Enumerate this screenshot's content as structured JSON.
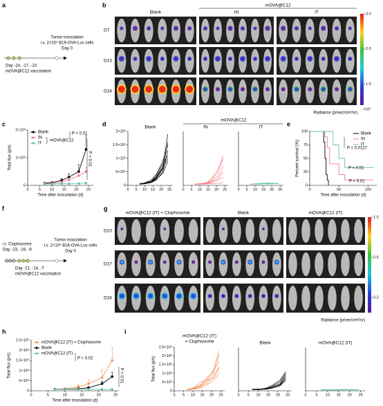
{
  "panel_labels": [
    "a",
    "b",
    "c",
    "d",
    "e",
    "f",
    "g",
    "h",
    "i"
  ],
  "panel_a": {
    "event": "Tumor inoculation",
    "detail": "i.v. 2×10⁵ B16-OVA-Luc cells",
    "day": "Day 0",
    "vaccine_days": "Day -24, -17, -10",
    "vaccine": "mOVA@C12 vaccination"
  },
  "panel_b": {
    "groups": [
      "Blank",
      "IN",
      "IT"
    ],
    "group_header": "mOVA@C12",
    "rows": [
      "D7",
      "D13",
      "D24"
    ],
    "colorbar": {
      "lim": [
        0.4,
        3
      ],
      "ticks": [
        {
          "value": 3,
          "label": "3.0"
        },
        {
          "value": 2,
          "label": "2.0"
        },
        {
          "value": 1,
          "label": "1.0"
        }
      ],
      "unit": "×10⁶",
      "label": "Radiance (p/sec/cm²/sr)"
    }
  },
  "panel_d": {
    "group_header": "mOVA@C12"
  },
  "panel_f": {
    "pretreat": "i.t. Clophosome",
    "pretreat_days": "Day -23, -16, -9",
    "event": "Tumor inoculation",
    "detail": "i.v. 2×10⁵ B16-OVA-Luc cells",
    "day": "Day 0",
    "vaccine_days": "Day -21, -14, -7",
    "vaccine": "mOVA@C12 vaccination"
  },
  "panel_g": {
    "groups": [
      "mOVA@C12 (IT) + Clophosome",
      "Blank",
      "mOVA@C12 (IT)"
    ],
    "rows": [
      "D10",
      "D17",
      "D24"
    ],
    "colorbar": {
      "lim": [
        0.05,
        1
      ],
      "ticks": [
        {
          "value": 1,
          "label": "1.0"
        },
        0.6,
        0.2
      ],
      "label": "Radiance (p/sec/cm²/sr)"
    }
  },
  "chart_data": [
    {
      "type": "line",
      "x_label": "Time after inoculation (d)",
      "y_label": "Total flux (p/s)",
      "x": [
        7,
        10,
        14,
        17,
        21,
        24
      ],
      "xlim": [
        0,
        27
      ],
      "xticks": [
        0,
        5,
        10,
        15,
        20,
        25
      ],
      "ylim": [
        0,
        2000000
      ],
      "yticks": [
        0,
        {
          "value": 1000000,
          "label": "1×10⁶"
        },
        {
          "value": 2000000,
          "label": "2×10⁶"
        }
      ],
      "legend": "upper left",
      "series": [
        {
          "name": "Blank",
          "color": "#000000",
          "values": [
            80000,
            100000,
            180000,
            300000,
            500000,
            1300000
          ],
          "errors": [
            20000,
            30000,
            60000,
            120000,
            250000,
            500000
          ]
        },
        {
          "name": "IN",
          "color": "#ef7f86",
          "values": [
            60000,
            70000,
            120000,
            200000,
            350000,
            500000
          ],
          "errors": [
            10000,
            20000,
            30000,
            60000,
            100000,
            150000
          ]
        },
        {
          "name": "IT",
          "color": "#66c2b0",
          "values": [
            50000,
            50000,
            60000,
            60000,
            70000,
            80000
          ],
          "errors": [
            10000,
            10000,
            10000,
            10000,
            15000,
            20000
          ]
        }
      ],
      "annotations": [
        "mOVA@C12",
        "P < 0.01",
        "P < 0.01"
      ]
    },
    {
      "type": "line",
      "title": "Blank",
      "x": [
        7,
        10,
        14,
        17,
        21,
        24
      ],
      "xlim": [
        0,
        27
      ],
      "xticks": [
        0,
        5,
        10,
        15,
        20,
        25
      ],
      "ylim": [
        0,
        2000000
      ],
      "yticks": [
        0,
        {
          "value": 500000,
          "label": "5×10⁵"
        },
        {
          "value": 1000000,
          "label": "1×10⁶"
        },
        {
          "value": 1500000,
          "label": "1.5×10⁶"
        },
        {
          "value": 2000000,
          "label": "2×10⁶"
        }
      ],
      "series": [
        {
          "color": "#000000",
          "values": [
            60000,
            80000,
            150000,
            300000,
            700000,
            1900000
          ]
        },
        {
          "color": "#000000",
          "values": [
            50000,
            70000,
            120000,
            250000,
            600000,
            1600000
          ]
        },
        {
          "color": "#000000",
          "values": [
            60000,
            90000,
            200000,
            400000,
            900000,
            1500000
          ]
        },
        {
          "color": "#000000",
          "values": [
            40000,
            60000,
            100000,
            200000,
            500000,
            1300000
          ]
        },
        {
          "color": "#000000",
          "values": [
            50000,
            80000,
            150000,
            350000,
            800000,
            1100000
          ]
        },
        {
          "color": "#000000",
          "values": [
            60000,
            70000,
            130000,
            280000,
            650000,
            1000000
          ]
        },
        {
          "color": "#000000",
          "values": [
            50000,
            60000,
            110000,
            220000,
            450000,
            900000
          ]
        }
      ]
    },
    {
      "type": "line",
      "title": "IN",
      "x": [
        7,
        10,
        14,
        17,
        21,
        24
      ],
      "xlim": [
        0,
        27
      ],
      "xticks": [
        0,
        5,
        10,
        15,
        20,
        25
      ],
      "ylim": [
        0,
        2000000
      ],
      "series": [
        {
          "color": "#ef7f86",
          "values": [
            50000,
            60000,
            100000,
            250000,
            600000,
            1100000
          ]
        },
        {
          "color": "#ef7f86",
          "values": [
            40000,
            50000,
            80000,
            200000,
            500000,
            1000000
          ]
        },
        {
          "color": "#ef7f86",
          "values": [
            50000,
            60000,
            90000,
            150000,
            350000,
            700000
          ]
        },
        {
          "color": "#ef7f86",
          "values": [
            40000,
            50000,
            70000,
            120000,
            250000,
            500000
          ]
        },
        {
          "color": "#ef7f86",
          "values": [
            50000,
            50000,
            60000,
            100000,
            200000,
            300000
          ]
        },
        {
          "color": "#ef7f86",
          "values": [
            40000,
            40000,
            50000,
            60000,
            80000,
            100000
          ]
        }
      ]
    },
    {
      "type": "line",
      "title": "IT",
      "x": [
        7,
        10,
        14,
        17,
        21,
        24
      ],
      "xlim": [
        0,
        27
      ],
      "xticks": [
        0,
        5,
        10,
        15,
        20,
        25
      ],
      "ylim": [
        0,
        2000000
      ],
      "series": [
        {
          "color": "#66c2b0",
          "values": [
            50000,
            60000,
            80000,
            70000,
            60000,
            70000
          ]
        },
        {
          "color": "#66c2b0",
          "values": [
            40000,
            50000,
            60000,
            90000,
            80000,
            60000
          ]
        },
        {
          "color": "#66c2b0",
          "values": [
            50000,
            40000,
            50000,
            60000,
            70000,
            50000
          ]
        },
        {
          "color": "#66c2b0",
          "values": [
            40000,
            50000,
            70000,
            50000,
            60000,
            80000
          ]
        }
      ]
    },
    {
      "type": "step",
      "x_label": "Time after inoculation (d)",
      "y_label": "Percent survival (%)",
      "xlim": [
        0,
        115
      ],
      "xticks": [
        0,
        50,
        100
      ],
      "ylim": [
        0,
        100
      ],
      "yticks": [
        0,
        25,
        50,
        75,
        100
      ],
      "legend": "upper right",
      "series": [
        {
          "name": "Blank",
          "color": "#000000",
          "x": [
            0,
            24,
            26,
            28,
            30,
            32
          ],
          "values": [
            100,
            80,
            50,
            20,
            10,
            0
          ]
        },
        {
          "name": "IN",
          "color": "#ef7f86",
          "x": [
            0,
            26,
            30,
            34,
            50,
            60,
            110
          ],
          "values": [
            100,
            90,
            70,
            40,
            20,
            10,
            10
          ]
        },
        {
          "name": "IT",
          "color": "#66c2b0",
          "x": [
            0,
            40,
            50,
            60,
            110
          ],
          "values": [
            100,
            75,
            50,
            33,
            33
          ]
        }
      ],
      "annotations": [
        "P = 0.0127",
        "P < 0.01",
        "P < 0.01"
      ]
    },
    {
      "type": "line",
      "x_label": "Time after inoculation (d)",
      "y_label": "Total flux (p/s)",
      "x": [
        7,
        10,
        14,
        17,
        21,
        24
      ],
      "xlim": [
        0,
        26
      ],
      "xticks": [
        0,
        5,
        10,
        15,
        20,
        25
      ],
      "ylim": [
        0,
        2500000
      ],
      "yticks": [
        0,
        {
          "value": 500000,
          "label": "5×10⁵"
        },
        {
          "value": 1000000,
          "label": "1×10⁶"
        },
        {
          "value": 1500000,
          "label": "1.5×10⁶"
        },
        {
          "value": 2000000,
          "label": "2×10⁶"
        },
        {
          "value": 2500000,
          "label": "2.5×10⁶"
        }
      ],
      "legend": "upper left",
      "series": [
        {
          "name": "mOVA@C12 (IT) + Clophosome",
          "color": "#f0955a",
          "values": [
            80000,
            100000,
            200000,
            350000,
            650000,
            1500000
          ],
          "errors": [
            20000,
            40000,
            100000,
            200000,
            400000,
            650000
          ]
        },
        {
          "name": "Blank",
          "color": "#000000",
          "values": [
            80000,
            80000,
            100000,
            150000,
            350000,
            700000
          ],
          "errors": [
            20000,
            20000,
            40000,
            60000,
            120000,
            200000
          ]
        },
        {
          "name": "mOVA@C12 (IT)",
          "color": "#66c2b0",
          "values": [
            70000,
            70000,
            70000,
            70000,
            70000,
            70000
          ],
          "errors": [
            10000,
            10000,
            10000,
            10000,
            10000,
            10000
          ]
        }
      ],
      "annotations": [
        "P = 0.02",
        "P < 0.01"
      ]
    },
    {
      "type": "line",
      "title": [
        "mOVA@C12 (IT)",
        "+ Clophosome"
      ],
      "y_label": "Total flux (p/s)",
      "x": [
        7,
        10,
        14,
        17,
        21,
        24
      ],
      "xlim": [
        0,
        27
      ],
      "xticks": [
        0,
        5,
        10,
        15,
        20,
        25
      ],
      "ylim": [
        0,
        2500000
      ],
      "yticks": [
        0,
        {
          "value": 500000,
          "label": "5×10⁵"
        },
        {
          "value": 1000000,
          "label": "1×10⁶"
        },
        {
          "value": 1500000,
          "label": "1.5×10⁶"
        },
        {
          "value": 2000000,
          "label": "2×10⁶"
        },
        {
          "value": 2500000,
          "label": "2.5×10⁶"
        }
      ],
      "series": [
        {
          "color": "#f0955a",
          "values": [
            100000,
            150000,
            300000,
            600000,
            1200000,
            2300000
          ]
        },
        {
          "color": "#f0955a",
          "values": [
            80000,
            120000,
            250000,
            500000,
            1000000,
            2100000
          ]
        },
        {
          "color": "#f0955a",
          "values": [
            90000,
            130000,
            350000,
            700000,
            1100000,
            1700000
          ]
        },
        {
          "color": "#f0955a",
          "values": [
            70000,
            100000,
            200000,
            400000,
            800000,
            1400000
          ]
        },
        {
          "color": "#f0955a",
          "values": [
            80000,
            150000,
            500000,
            600000,
            700000,
            1300000
          ]
        },
        {
          "color": "#f0955a",
          "values": [
            60000,
            90000,
            150000,
            300000,
            600000,
            1000000
          ]
        }
      ]
    },
    {
      "type": "line",
      "title": "Blank",
      "x": [
        7,
        10,
        14,
        17,
        21,
        24
      ],
      "xlim": [
        0,
        27
      ],
      "xticks": [
        0,
        5,
        10,
        15,
        20,
        25
      ],
      "ylim": [
        0,
        2500000
      ],
      "series": [
        {
          "color": "#000000",
          "values": [
            100000,
            80000,
            150000,
            300000,
            600000,
            1100000
          ]
        },
        {
          "color": "#000000",
          "values": [
            80000,
            100000,
            120000,
            250000,
            500000,
            1000000
          ]
        },
        {
          "color": "#000000",
          "values": [
            90000,
            70000,
            100000,
            200000,
            400000,
            900000
          ]
        },
        {
          "color": "#000000",
          "values": [
            70000,
            90000,
            130000,
            180000,
            350000,
            800000
          ]
        },
        {
          "color": "#000000",
          "values": [
            60000,
            80000,
            90000,
            150000,
            300000,
            700000
          ]
        },
        {
          "color": "#000000",
          "values": [
            80000,
            60000,
            110000,
            160000,
            280000,
            600000
          ]
        }
      ]
    },
    {
      "type": "line",
      "title": "mOVA@C12 (IT)",
      "x": [
        7,
        10,
        14,
        17,
        21,
        24
      ],
      "xlim": [
        0,
        27
      ],
      "xticks": [
        0,
        5,
        10,
        15,
        20,
        25
      ],
      "ylim": [
        0,
        2500000
      ],
      "series": [
        {
          "color": "#66c2b0",
          "values": [
            60000,
            70000,
            60000,
            80000,
            70000,
            60000
          ]
        },
        {
          "color": "#66c2b0",
          "values": [
            50000,
            60000,
            70000,
            60000,
            50000,
            70000
          ]
        },
        {
          "color": "#66c2b0",
          "values": [
            40000,
            50000,
            50000,
            60000,
            60000,
            50000
          ]
        },
        {
          "color": "#66c2b0",
          "values": [
            60000,
            50000,
            40000,
            50000,
            70000,
            60000
          ]
        }
      ]
    }
  ]
}
